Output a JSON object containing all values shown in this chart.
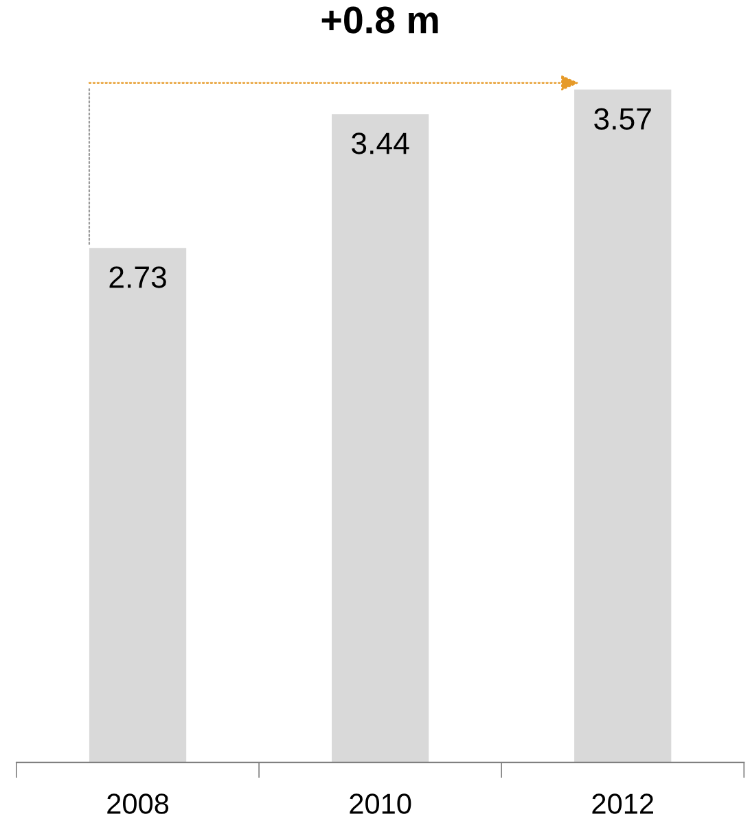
{
  "chart_data": {
    "type": "bar",
    "title": "+0.8 m",
    "categories": [
      "2008",
      "2010",
      "2012"
    ],
    "values": [
      2.73,
      3.44,
      3.57
    ],
    "color": "#d9d9d9",
    "data_labels": true,
    "grid": false
  }
}
